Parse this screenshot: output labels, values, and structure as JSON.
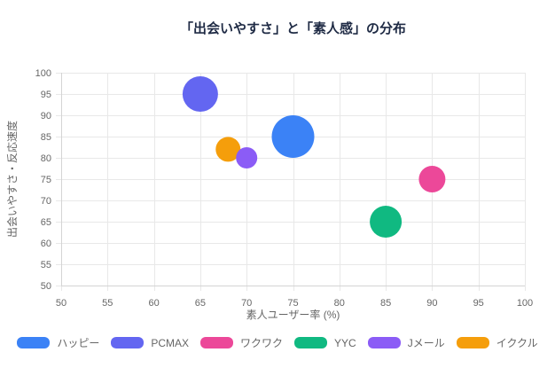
{
  "chart_data": {
    "type": "bubble",
    "title": "「出会いやすさ」と「素人感」の分布",
    "xlabel": "素人ユーザー率 (%)",
    "ylabel": "出会いやすさ・反応速度",
    "xlim": [
      50,
      100
    ],
    "ylim": [
      50,
      100
    ],
    "xticks": [
      50,
      55,
      60,
      65,
      70,
      75,
      80,
      85,
      90,
      95,
      100
    ],
    "yticks": [
      50,
      55,
      60,
      65,
      70,
      75,
      80,
      85,
      90,
      95,
      100
    ],
    "grid": true,
    "legend_position": "bottom",
    "series": [
      {
        "id": "happy",
        "name": "ハッピー",
        "color": "#3b82f6",
        "points": [
          {
            "x": 75,
            "y": 85,
            "r": 24
          }
        ]
      },
      {
        "id": "pcmax",
        "name": "PCMAX",
        "color": "#6366f1",
        "points": [
          {
            "x": 65,
            "y": 95,
            "r": 20
          }
        ]
      },
      {
        "id": "wakuwaku",
        "name": "ワクワク",
        "color": "#ec4899",
        "points": [
          {
            "x": 90,
            "y": 75,
            "r": 15
          }
        ]
      },
      {
        "id": "yyc",
        "name": "YYC",
        "color": "#10b981",
        "points": [
          {
            "x": 85,
            "y": 65,
            "r": 18
          }
        ]
      },
      {
        "id": "jmail",
        "name": "Jメール",
        "color": "#8b5cf6",
        "points": [
          {
            "x": 70,
            "y": 80,
            "r": 12
          }
        ]
      },
      {
        "id": "ikukuru",
        "name": "イククル",
        "color": "#f59e0b",
        "points": [
          {
            "x": 68,
            "y": 82,
            "r": 14
          }
        ]
      }
    ],
    "style": {
      "title_color": "#1e2a44",
      "axis_text_color": "#666666",
      "grid_color": "#e8e8e8",
      "border_color": "#d4d4d4",
      "background": "#ffffff"
    }
  }
}
